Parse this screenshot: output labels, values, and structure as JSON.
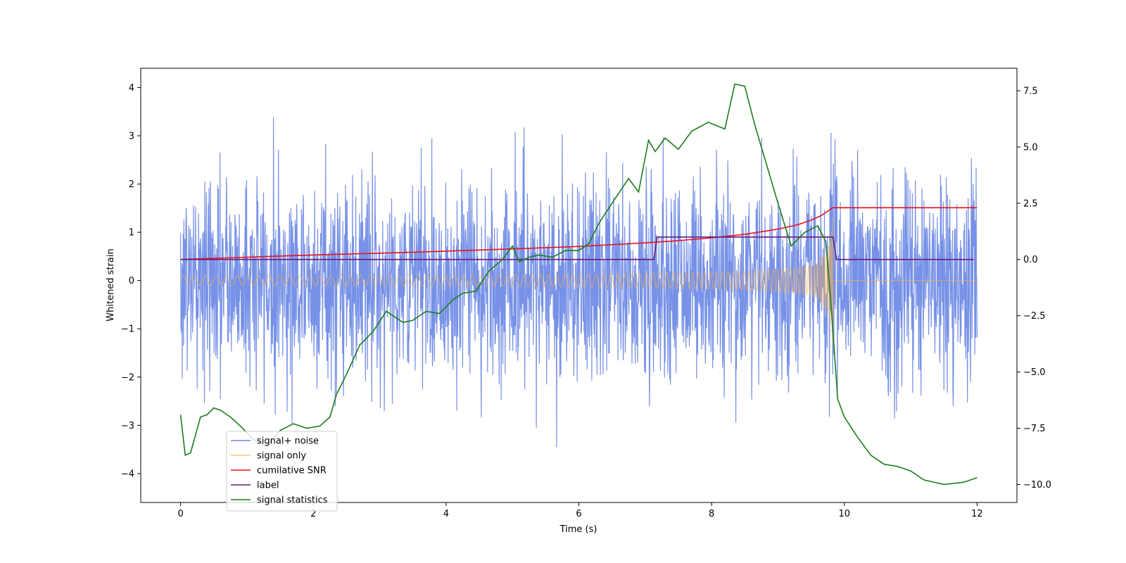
{
  "chart_data": {
    "type": "line",
    "xlabel": "Time (s)",
    "ylabel": "Whitened strain",
    "xlim": [
      -0.6,
      12.6
    ],
    "ylim_left": [
      -4.6,
      4.4
    ],
    "ylim_right": [
      -10.8,
      8.5
    ],
    "x_ticks": [
      0,
      2,
      4,
      6,
      8,
      10,
      12
    ],
    "x_tick_labels": [
      "0",
      "2",
      "4",
      "6",
      "8",
      "10",
      "12"
    ],
    "y_left_ticks": [
      -4,
      -3,
      -2,
      -1,
      0,
      1,
      2,
      3,
      4
    ],
    "y_left_tick_labels": [
      "−4",
      "−3",
      "−2",
      "−1",
      "0",
      "1",
      "2",
      "3",
      "4"
    ],
    "y_right_ticks": [
      -10,
      -7.5,
      -5,
      -2.5,
      0,
      2.5,
      5,
      7.5
    ],
    "y_right_tick_labels": [
      "−10.0",
      "−7.5",
      "−5.0",
      "−2.5",
      "0.0",
      "2.5",
      "5.0",
      "7.5"
    ],
    "grid": false,
    "legend_position": "lower-left",
    "series": [
      {
        "name": "signal+ noise",
        "axis": "left",
        "color": "#6f8be6",
        "kind": "noise",
        "x_range": [
          0,
          12
        ],
        "sigma": 1.0,
        "peak_range": [
          -4.2,
          4.0
        ]
      },
      {
        "name": "signal only",
        "axis": "left",
        "color": "#ffb347",
        "kind": "chirp",
        "x_range": [
          0,
          9.83
        ],
        "amplitude_start": 0.1,
        "amplitude_peak": 1.75,
        "post_value": 0.0,
        "post_range": [
          9.83,
          12
        ]
      },
      {
        "name": "cumilative SNR",
        "axis": "right",
        "color": "#e8131f",
        "x": [
          0,
          1,
          2,
          3,
          4,
          5,
          6,
          7,
          7.5,
          8,
          8.5,
          9,
          9.3,
          9.5,
          9.65,
          9.75,
          9.82,
          9.9,
          12
        ],
        "y": [
          0.0,
          0.1,
          0.2,
          0.28,
          0.37,
          0.47,
          0.58,
          0.74,
          0.84,
          0.96,
          1.12,
          1.35,
          1.55,
          1.75,
          1.95,
          2.15,
          2.3,
          2.3,
          2.3
        ]
      },
      {
        "name": "label",
        "axis": "right",
        "color": "#6a1b7a",
        "x": [
          0,
          7.13,
          7.18,
          9.83,
          9.88,
          11.95
        ],
        "y": [
          0,
          0,
          1,
          1,
          0,
          0
        ]
      },
      {
        "name": "signal statistics",
        "axis": "right",
        "color": "#1a7d1a",
        "x": [
          0,
          0.07,
          0.15,
          0.3,
          0.4,
          0.5,
          0.6,
          0.75,
          0.9,
          1.1,
          1.3,
          1.5,
          1.7,
          1.9,
          2.1,
          2.25,
          2.35,
          2.5,
          2.7,
          2.9,
          3.1,
          3.2,
          3.35,
          3.5,
          3.7,
          3.9,
          4.1,
          4.25,
          4.45,
          4.65,
          4.85,
          5.0,
          5.1,
          5.25,
          5.4,
          5.6,
          5.8,
          6.0,
          6.15,
          6.3,
          6.5,
          6.75,
          6.9,
          7.05,
          7.15,
          7.3,
          7.5,
          7.7,
          7.95,
          8.2,
          8.35,
          8.5,
          8.65,
          8.85,
          9.0,
          9.2,
          9.4,
          9.6,
          9.72,
          9.8,
          9.9,
          10.0,
          10.2,
          10.4,
          10.6,
          10.8,
          11.0,
          11.2,
          11.5,
          11.8,
          12.0
        ],
        "y": [
          -6.9,
          -8.7,
          -8.6,
          -7.0,
          -6.9,
          -6.6,
          -6.7,
          -7.0,
          -7.4,
          -8.0,
          -8.3,
          -7.6,
          -7.3,
          -7.5,
          -7.4,
          -7.0,
          -6.0,
          -5.1,
          -3.8,
          -3.2,
          -2.3,
          -2.5,
          -2.8,
          -2.7,
          -2.3,
          -2.4,
          -1.8,
          -1.5,
          -1.4,
          -0.5,
          0.0,
          0.6,
          -0.1,
          0.1,
          0.2,
          0.1,
          0.4,
          0.4,
          0.7,
          1.6,
          2.5,
          3.6,
          3.0,
          5.3,
          4.8,
          5.4,
          4.9,
          5.7,
          6.1,
          5.8,
          7.8,
          7.7,
          6.0,
          4.0,
          2.5,
          0.6,
          1.2,
          1.5,
          0.8,
          -2.0,
          -6.2,
          -7.0,
          -7.9,
          -8.7,
          -9.1,
          -9.2,
          -9.4,
          -9.8,
          -10.0,
          -9.9,
          -9.7
        ]
      }
    ]
  }
}
